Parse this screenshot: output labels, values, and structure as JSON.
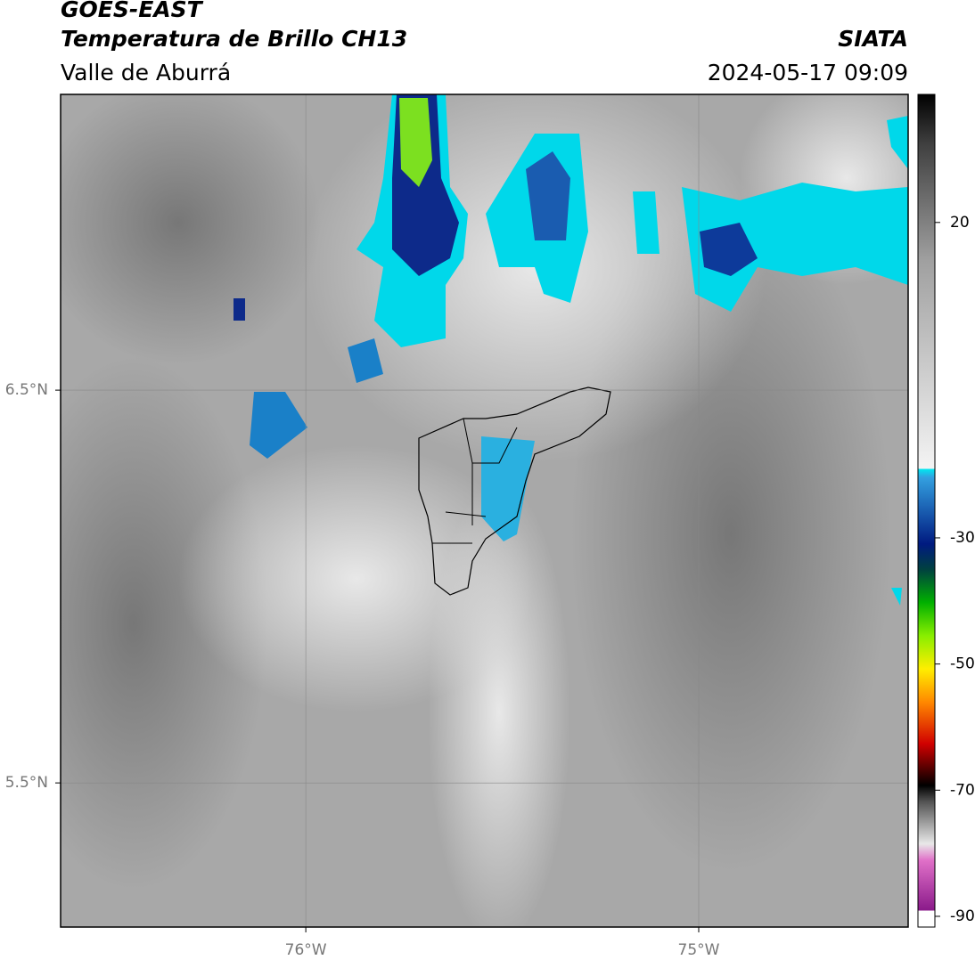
{
  "header": {
    "title": "GOES-EAST",
    "subtitle": "Temperatura de Brillo CH13",
    "region": "Valle de Aburrá",
    "source": "SIATA",
    "datetime": "2024-05-17 09:09"
  },
  "map": {
    "xlim": [
      -76.624,
      -74.467
    ],
    "ylim": [
      5.133,
      7.253
    ],
    "xticks": [
      {
        "value": -76,
        "label": "76°W"
      },
      {
        "value": -75,
        "label": "75°W"
      }
    ],
    "yticks": [
      {
        "value": 6.5,
        "label": "6.5°N"
      },
      {
        "value": 5.5,
        "label": "5.5°N"
      }
    ]
  },
  "colorbar": {
    "lim": [
      -91.7,
      40.3
    ],
    "ticks": [
      20,
      -30,
      -50,
      -70,
      -90
    ]
  }
}
